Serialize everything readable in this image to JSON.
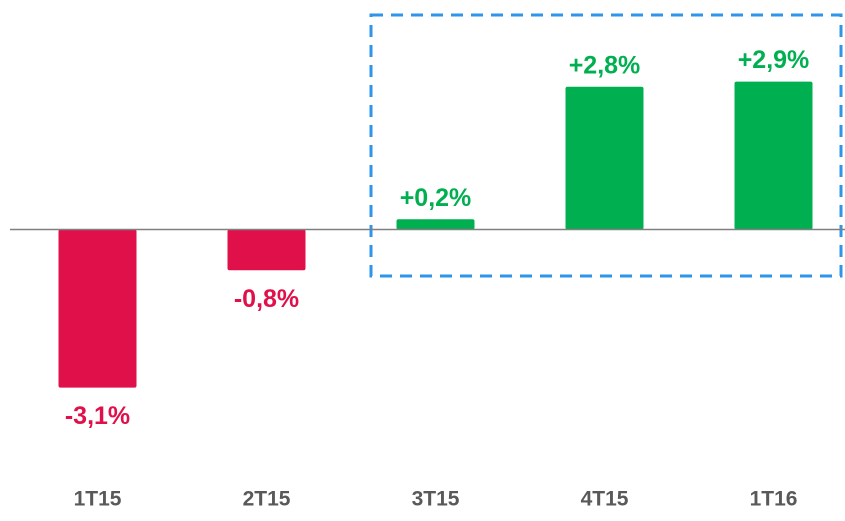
{
  "chart_data": {
    "type": "bar",
    "categories": [
      "1T15",
      "2T15",
      "3T15",
      "4T15",
      "1T16"
    ],
    "values": [
      -3.1,
      -0.8,
      0.2,
      2.8,
      2.9
    ],
    "value_labels": [
      "-3,1%",
      "-0,8%",
      "+0,2%",
      "+2,8%",
      "+2,9%"
    ],
    "colors": [
      "#e0104a",
      "#e0104a",
      "#00b050",
      "#00b050",
      "#00b050"
    ],
    "ylim": [
      -5.5,
      4.5
    ]
  }
}
